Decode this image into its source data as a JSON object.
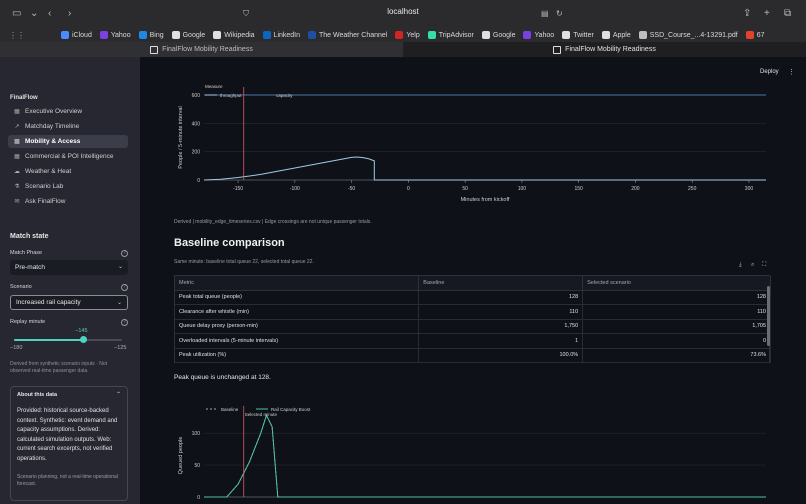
{
  "browser": {
    "url": "localhost",
    "bookmarks": [
      {
        "label": "iCloud",
        "color": "#4a8cff"
      },
      {
        "label": "Yahoo",
        "color": "#7b3fe4"
      },
      {
        "label": "Bing",
        "color": "#1e88e5"
      },
      {
        "label": "Google",
        "color": "#e0e0e0"
      },
      {
        "label": "Wikipedia",
        "color": "#e0e0e0"
      },
      {
        "label": "LinkedIn",
        "color": "#0a66c2"
      },
      {
        "label": "The Weather Channel",
        "color": "#1e4fa3"
      },
      {
        "label": "Yelp",
        "color": "#d32323"
      },
      {
        "label": "TripAdvisor",
        "color": "#34e0a1"
      },
      {
        "label": "Google",
        "color": "#e0e0e0"
      },
      {
        "label": "Yahoo",
        "color": "#7b3fe4"
      },
      {
        "label": "Twitter",
        "color": "#e0e0e0"
      },
      {
        "label": "Apple",
        "color": "#e0e0e0"
      },
      {
        "label": "SSD_Course_...4-13291.pdf",
        "color": "#bdbdbd"
      },
      {
        "label": "67",
        "color": "#e0452b"
      }
    ],
    "tabs": [
      {
        "label": "FinalFlow Mobility Readiness"
      },
      {
        "label": "FinalFlow Mobility Readiness"
      }
    ]
  },
  "sidebar": {
    "brand": "FinalFlow",
    "nav": [
      {
        "label": "Executive Overview",
        "icon": "dashboard-icon",
        "glyph": "▦"
      },
      {
        "label": "Matchday Timeline",
        "icon": "trend-icon",
        "glyph": "↗"
      },
      {
        "label": "Mobility & Access",
        "icon": "grid-icon",
        "glyph": "▦",
        "active": true
      },
      {
        "label": "Commercial & POI Intelligence",
        "icon": "grid-icon",
        "glyph": "▦"
      },
      {
        "label": "Weather & Heat",
        "icon": "cloud-icon",
        "glyph": "☁"
      },
      {
        "label": "Scenario Lab",
        "icon": "flask-icon",
        "glyph": "⚗"
      },
      {
        "label": "Ask FinalFlow",
        "icon": "chat-icon",
        "glyph": "✉"
      }
    ],
    "match_state": "Match state",
    "match_phase_label": "Match Phase",
    "match_phase_value": "Pre-match",
    "scenario_label": "Scenario",
    "scenario_value": "Increased rail capacity",
    "replay_label": "Replay minute",
    "replay_value": "−145",
    "replay_min": "−180",
    "replay_max": "−125",
    "replay_fraction": 0.64,
    "derived_note": "Derived from synthetic scenario inputs · Not observed real-time passenger data.",
    "about_title": "About this data",
    "about_body": "Provided: historical source-backed context. Synthetic: event demand and capacity assumptions. Derived: calculated simulation outputs. Web: current search excerpts, not verified operations.",
    "about_note": "Scenario planning, not a real-time operational forecast."
  },
  "header": {
    "deploy": "Deploy"
  },
  "chart_data": [
    {
      "type": "line",
      "legend_title": "Measure",
      "ylabel": "People / 5-minute interval",
      "xlabel": "Minutes from kickoff",
      "x_ticks": [
        -150,
        -100,
        -50,
        0,
        50,
        100,
        150,
        200,
        250,
        300
      ],
      "y_ticks": [
        0,
        200,
        400,
        600
      ],
      "xlim": [
        -180,
        315
      ],
      "ylim": [
        0,
        600
      ],
      "marker_x": -145,
      "series": [
        {
          "name": "throughput",
          "color": "#9ecae9",
          "x": [
            -180,
            -165,
            -150,
            -140,
            -130,
            -120,
            -110,
            -100,
            -90,
            -80,
            -70,
            -60,
            -50,
            -45,
            -40,
            -35,
            -30,
            -30,
            315
          ],
          "y": [
            0,
            5,
            18,
            28,
            40,
            55,
            70,
            85,
            100,
            115,
            130,
            145,
            160,
            162,
            158,
            150,
            135,
            0,
            0
          ]
        },
        {
          "name": "capacity",
          "color": "#4c78a8",
          "x": [
            -180,
            315
          ],
          "y": [
            600,
            600
          ]
        }
      ]
    },
    {
      "type": "line",
      "ylabel": "Queued people",
      "y_ticks": [
        0,
        50,
        100
      ],
      "xlim": [
        -180,
        315
      ],
      "ylim": [
        0,
        130
      ],
      "marker_x": -145,
      "marker_label": "Selected minute",
      "series": [
        {
          "name": "Baseline",
          "color": "#a8a8a8",
          "dashed": true,
          "x": [
            -180,
            -160,
            -150,
            -140,
            -130,
            -125,
            -120,
            -115,
            -110,
            315
          ],
          "y": [
            0,
            0,
            20,
            55,
            100,
            128,
            110,
            0,
            0,
            0
          ]
        },
        {
          "name": "Rail Capacity Boost",
          "color": "#4fc3a1",
          "x": [
            -180,
            -160,
            -150,
            -140,
            -130,
            -125,
            -120,
            -115,
            -110,
            315
          ],
          "y": [
            0,
            0,
            20,
            55,
            100,
            128,
            110,
            0,
            0,
            0
          ]
        }
      ]
    }
  ],
  "main": {
    "derived_caption": "Derived | mobility_edge_timeseries.csv | Edge crossings are not unique passenger totals.",
    "section_title": "Baseline comparison",
    "section_subtitle": "Same minute: baseline total queue 22, selected total queue 22.",
    "table": {
      "headers": [
        "Metric",
        "Baseline",
        "Selected scenario"
      ],
      "rows": [
        [
          "Peak total queue (people)",
          "128",
          "128"
        ],
        [
          "Clearance after whistle (min)",
          "110",
          "110"
        ],
        [
          "Queue delay proxy (person-min)",
          "1,750",
          "1,705"
        ],
        [
          "Overloaded intervals (5-minute intervals)",
          "1",
          "0"
        ],
        [
          "Peak utilization (%)",
          "100.0%",
          "73.6%"
        ]
      ]
    },
    "peak_text": "Peak queue is unchanged at 128."
  }
}
